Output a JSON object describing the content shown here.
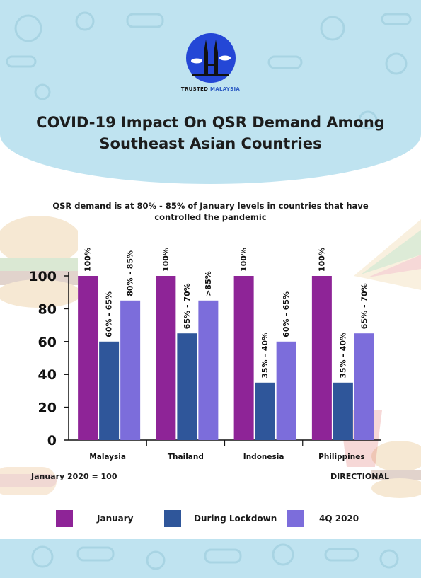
{
  "brand": {
    "name_part1": "TRUSTED",
    "name_part2": "MALAYSIA"
  },
  "title_line1": "COVID-19 Impact On QSR Demand Among",
  "title_line2": "Southeast Asian Countries",
  "subtitle": "QSR demand is at 80% - 85% of January levels in countries that have controlled the pandemic",
  "footnote_left": "January 2020 = 100",
  "footnote_right": "DIRECTIONAL",
  "colors": {
    "january": "#8e2497",
    "lockdown": "#2f569a",
    "q4": "#7c6ddb",
    "band": "#bfe3f0"
  },
  "chart_data": {
    "type": "bar",
    "categories": [
      "Malaysia",
      "Thailand",
      "Indonesia",
      "Philippines"
    ],
    "ylim": [
      0,
      100
    ],
    "yticks": [
      0,
      20,
      40,
      60,
      80,
      100
    ],
    "series": [
      {
        "name": "January",
        "values": [
          100,
          100,
          100,
          100
        ],
        "labels": [
          "100%",
          "100%",
          "100%",
          "100%"
        ],
        "color": "#8e2497"
      },
      {
        "name": "During Lockdown",
        "values": [
          60,
          65,
          35,
          35
        ],
        "labels": [
          "60% - 65%",
          "65% - 70%",
          "35% - 40%",
          "35% - 40%"
        ],
        "color": "#2f569a"
      },
      {
        "name": "4Q 2020",
        "values": [
          85,
          85,
          60,
          65
        ],
        "labels": [
          "80% - 85%",
          ">85%",
          "60% - 65%",
          "65% - 70%"
        ],
        "color": "#7c6ddb"
      }
    ]
  }
}
